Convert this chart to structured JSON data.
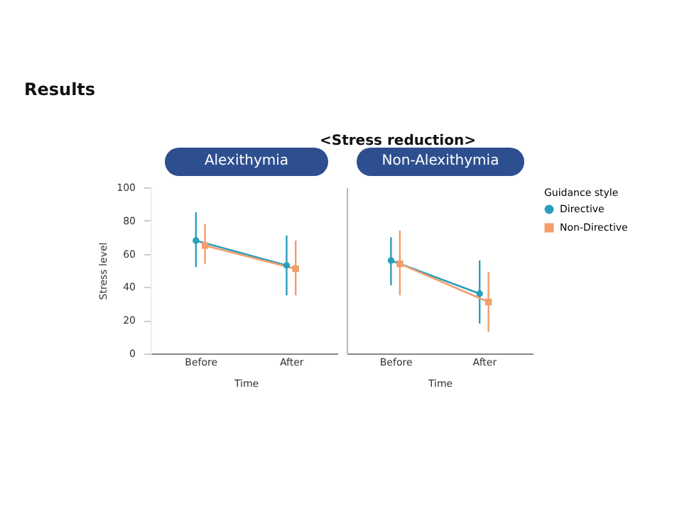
{
  "chart_data": [
    {
      "type": "line",
      "title": "Alexithymia",
      "annotations": [
        "Results",
        "<Stress reduction>"
      ],
      "categories": [
        "Before",
        "After"
      ],
      "xlabel": "Time",
      "ylabel": "Stress level",
      "ylim": [
        0,
        100
      ],
      "yticks": [
        0,
        20,
        40,
        60,
        80,
        100
      ],
      "legend": false,
      "series": [
        {
          "color": "#2a9fbc",
          "marker": "circle",
          "values": [
            68,
            53
          ],
          "errors": [
            [
              52,
              85
            ],
            [
              35,
              71
            ]
          ]
        },
        {
          "color": "#f29d6b",
          "marker": "square",
          "values": [
            65,
            51
          ],
          "errors": [
            [
              54,
              78
            ],
            [
              35,
              68
            ]
          ]
        }
      ]
    },
    {
      "type": "line",
      "title": "Non-Alexithymia",
      "categories": [
        "Before",
        "After"
      ],
      "xlabel": "Time",
      "ylim": [
        0,
        100
      ],
      "tick_labels": "x",
      "legend": "right",
      "legend_title": "Guidance style",
      "series": [
        {
          "name": "Directive",
          "color": "#2a9fbc",
          "marker": "circle",
          "values": [
            56,
            36
          ],
          "errors": [
            [
              41,
              70
            ],
            [
              18,
              56
            ]
          ]
        },
        {
          "name": "Non-Directive",
          "color": "#f29d6b",
          "marker": "square",
          "values": [
            54,
            31
          ],
          "errors": [
            [
              35,
              74
            ],
            [
              13,
              49
            ]
          ]
        }
      ]
    }
  ]
}
